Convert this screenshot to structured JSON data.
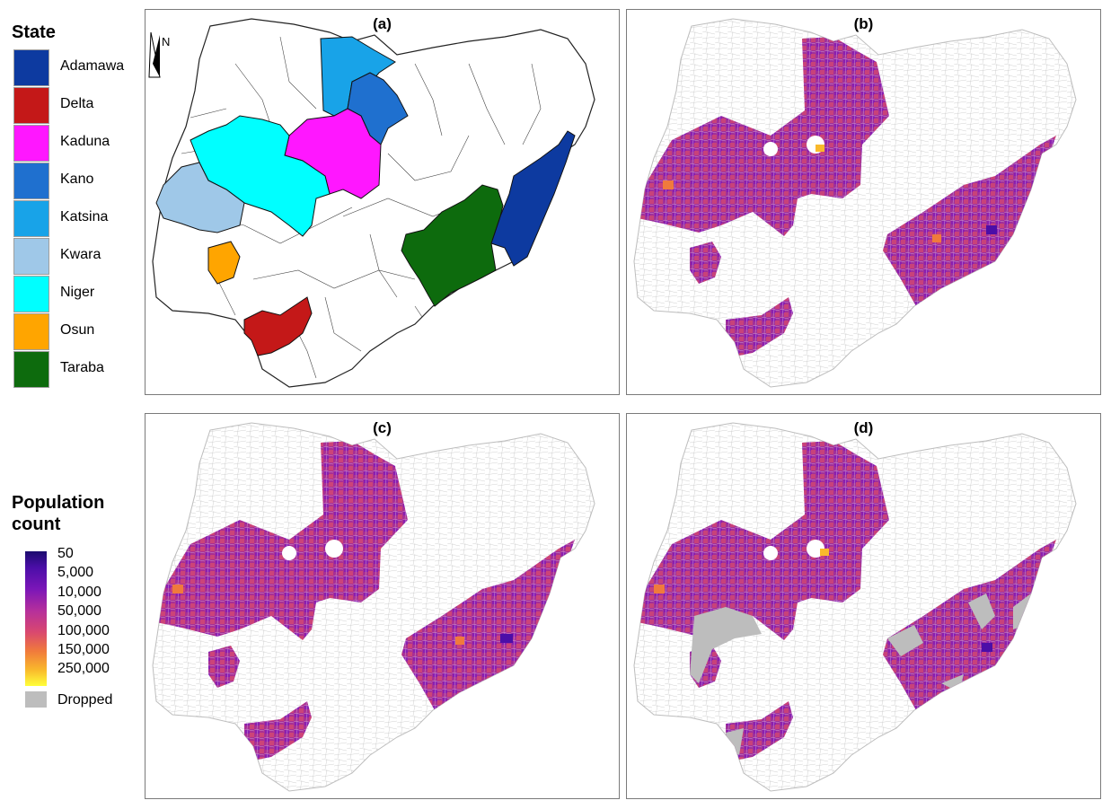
{
  "state_legend": {
    "title": "State",
    "items": [
      {
        "label": "Adamawa",
        "color": "#0d3aa0"
      },
      {
        "label": "Delta",
        "color": "#c41818"
      },
      {
        "label": "Kaduna",
        "color": "#ff17ff"
      },
      {
        "label": "Kano",
        "color": "#1f70cf"
      },
      {
        "label": "Katsina",
        "color": "#18a3e8"
      },
      {
        "label": "Kwara",
        "color": "#9fc8e8"
      },
      {
        "label": "Niger",
        "color": "#00ffff"
      },
      {
        "label": "Osun",
        "color": "#ffa500"
      },
      {
        "label": "Taraba",
        "color": "#0d6b0d"
      }
    ]
  },
  "population_legend": {
    "title": "Population count",
    "labels": [
      "50",
      "5,000",
      "10,000",
      "50,000",
      "100,000",
      "150,000",
      "250,000"
    ],
    "dropped_label": "Dropped",
    "dropped_color": "#bdbdbd"
  },
  "panels": [
    {
      "label": "(a)"
    },
    {
      "label": "(b)"
    },
    {
      "label": "(c)"
    },
    {
      "label": "(d)"
    }
  ],
  "north_arrow": "N"
}
